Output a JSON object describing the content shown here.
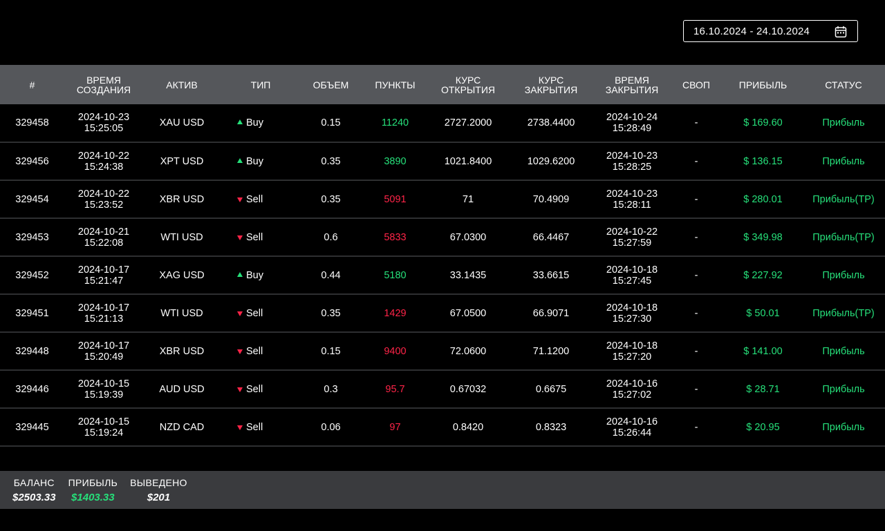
{
  "date_range": {
    "value": "16.10.2024 - 24.10.2024",
    "icon": "calendar-icon"
  },
  "colors": {
    "background": "#000000",
    "header_bg": "#55575b",
    "summary_bg": "#3a3b3e",
    "profit_green": "#26e07a",
    "loss_red": "#ff2448"
  },
  "table": {
    "headers": {
      "id": "#",
      "created_line1": "Время",
      "created_line2": "создания",
      "asset": "Актив",
      "type": "Тип",
      "volume": "Объем",
      "points": "Пункты",
      "open_rate_line1": "Курс",
      "open_rate_line2": "открытия",
      "close_rate_line1": "Курс",
      "close_rate_line2": "закрытия",
      "closed_line1": "Время",
      "closed_line2": "закрытия",
      "swap": "Своп",
      "profit": "Прибыль",
      "status": "Статус"
    },
    "rows": [
      {
        "id": "329458",
        "created_date": "2024-10-23",
        "created_time": "15:25:05",
        "asset": "XAU USD",
        "type": "Buy",
        "direction": "up",
        "volume": "0.15",
        "points": "11240",
        "open_rate": "2727.2000",
        "close_rate": "2738.4400",
        "closed_date": "2024-10-24",
        "closed_time": "15:28:49",
        "swap": "-",
        "profit": "$ 169.60",
        "status": "Прибыль"
      },
      {
        "id": "329456",
        "created_date": "2024-10-22",
        "created_time": "15:24:38",
        "asset": "XPT USD",
        "type": "Buy",
        "direction": "up",
        "volume": "0.35",
        "points": "3890",
        "open_rate": "1021.8400",
        "close_rate": "1029.6200",
        "closed_date": "2024-10-23",
        "closed_time": "15:28:25",
        "swap": "-",
        "profit": "$ 136.15",
        "status": "Прибыль"
      },
      {
        "id": "329454",
        "created_date": "2024-10-22",
        "created_time": "15:23:52",
        "asset": "XBR USD",
        "type": "Sell",
        "direction": "down",
        "volume": "0.35",
        "points": "5091",
        "open_rate": "71",
        "close_rate": "70.4909",
        "closed_date": "2024-10-23",
        "closed_time": "15:28:11",
        "swap": "-",
        "profit": "$ 280.01",
        "status": "Прибыль(TP)"
      },
      {
        "id": "329453",
        "created_date": "2024-10-21",
        "created_time": "15:22:08",
        "asset": "WTI USD",
        "type": "Sell",
        "direction": "down",
        "volume": "0.6",
        "points": "5833",
        "open_rate": "67.0300",
        "close_rate": "66.4467",
        "closed_date": "2024-10-22",
        "closed_time": "15:27:59",
        "swap": "-",
        "profit": "$ 349.98",
        "status": "Прибыль(TP)"
      },
      {
        "id": "329452",
        "created_date": "2024-10-17",
        "created_time": "15:21:47",
        "asset": "XAG USD",
        "type": "Buy",
        "direction": "up",
        "volume": "0.44",
        "points": "5180",
        "open_rate": "33.1435",
        "close_rate": "33.6615",
        "closed_date": "2024-10-18",
        "closed_time": "15:27:45",
        "swap": "-",
        "profit": "$ 227.92",
        "status": "Прибыль"
      },
      {
        "id": "329451",
        "created_date": "2024-10-17",
        "created_time": "15:21:13",
        "asset": "WTI USD",
        "type": "Sell",
        "direction": "down",
        "volume": "0.35",
        "points": "1429",
        "open_rate": "67.0500",
        "close_rate": "66.9071",
        "closed_date": "2024-10-18",
        "closed_time": "15:27:30",
        "swap": "-",
        "profit": "$ 50.01",
        "status": "Прибыль(TP)"
      },
      {
        "id": "329448",
        "created_date": "2024-10-17",
        "created_time": "15:20:49",
        "asset": "XBR USD",
        "type": "Sell",
        "direction": "down",
        "volume": "0.15",
        "points": "9400",
        "open_rate": "72.0600",
        "close_rate": "71.1200",
        "closed_date": "2024-10-18",
        "closed_time": "15:27:20",
        "swap": "-",
        "profit": "$ 141.00",
        "status": "Прибыль"
      },
      {
        "id": "329446",
        "created_date": "2024-10-15",
        "created_time": "15:19:39",
        "asset": "AUD USD",
        "type": "Sell",
        "direction": "down",
        "volume": "0.3",
        "points": "95.7",
        "open_rate": "0.67032",
        "close_rate": "0.6675",
        "closed_date": "2024-10-16",
        "closed_time": "15:27:02",
        "swap": "-",
        "profit": "$ 28.71",
        "status": "Прибыль"
      },
      {
        "id": "329445",
        "created_date": "2024-10-15",
        "created_time": "15:19:24",
        "asset": "NZD CAD",
        "type": "Sell",
        "direction": "down",
        "volume": "0.06",
        "points": "97",
        "open_rate": "0.8420",
        "close_rate": "0.8323",
        "closed_date": "2024-10-16",
        "closed_time": "15:26:44",
        "swap": "-",
        "profit": "$ 20.95",
        "status": "Прибыль"
      }
    ]
  },
  "summary": {
    "balance_label": "Баланс",
    "balance_value": "$2503.33",
    "profit_label": "Прибыль",
    "profit_value": "$1403.33",
    "withdrawn_label": "Выведено",
    "withdrawn_value": "$201"
  }
}
